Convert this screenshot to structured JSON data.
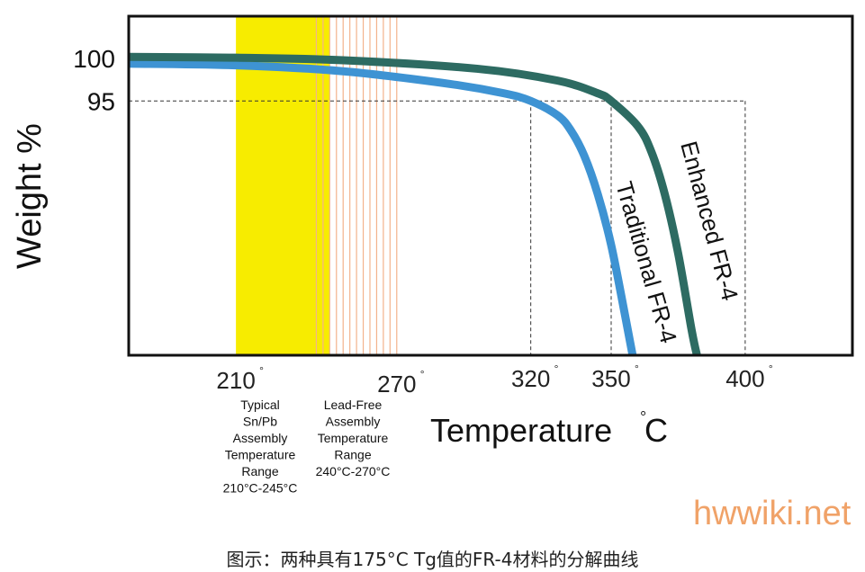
{
  "chart_data": {
    "type": "line",
    "xlabel": "Temperature",
    "xlabel_unit": "°C",
    "xlabel_unit_mark": "°",
    "xlabel_unit_letter": "C",
    "ylabel": "Weight %",
    "x_ticks": [
      {
        "value": 210,
        "label": "210"
      },
      {
        "value": 270,
        "label": "270"
      },
      {
        "value": 320,
        "label": "320"
      },
      {
        "value": 350,
        "label": "350"
      },
      {
        "value": 400,
        "label": "400"
      }
    ],
    "degree_mark": "°",
    "y_ticks": [
      {
        "value": 100,
        "label": "100"
      },
      {
        "value": 95,
        "label": "95"
      }
    ],
    "xlim": [
      170,
      440
    ],
    "ylim": [
      65,
      105
    ],
    "grid": false,
    "bands": [
      {
        "name": "Typical Sn/Pb Assembly Temperature Range",
        "from": 210,
        "to": 245,
        "color": "#f7ec00",
        "label_lines": [
          "Typical",
          "Sn/Pb",
          "Assembly",
          "Temperature",
          "Range",
          "210°C-245°C"
        ]
      },
      {
        "name": "Lead-Free Assembly Temperature Range",
        "from": 240,
        "to": 270,
        "color": "#f3b38c",
        "label_lines": [
          "Lead-Free",
          "Assembly",
          "Temperature",
          "Range",
          "240°C-270°C"
        ]
      }
    ],
    "reference_lines": [
      {
        "axis": "y",
        "value": 95,
        "to_x": 400
      },
      {
        "axis": "x",
        "value": 320,
        "from_y": 95
      },
      {
        "axis": "x",
        "value": 350,
        "from_y": 95
      },
      {
        "axis": "x",
        "value": 400,
        "from_y": 95
      }
    ],
    "series": [
      {
        "name": "Traditional FR-4",
        "color": "#3e93d3",
        "x": [
          170,
          210,
          250,
          290,
          310,
          320,
          330,
          335,
          340,
          345,
          350,
          355,
          358
        ],
        "y": [
          99.4,
          99.2,
          98.5,
          97.0,
          95.9,
          95.0,
          93.3,
          91.5,
          88.5,
          84.0,
          78.0,
          70.0,
          65.0
        ]
      },
      {
        "name": "Enhanced FR-4",
        "color": "#2d6b62",
        "x": [
          170,
          210,
          250,
          300,
          330,
          345,
          350,
          360,
          365,
          370,
          375,
          380,
          382
        ],
        "y": [
          100.2,
          100.1,
          99.8,
          98.8,
          97.4,
          95.9,
          95.0,
          92.0,
          89.0,
          84.0,
          77.0,
          68.0,
          65.0
        ]
      }
    ]
  },
  "watermark": "hwwiki.net",
  "caption": "图示：两种具有175°C Tg值的FR-4材料的分解曲线"
}
